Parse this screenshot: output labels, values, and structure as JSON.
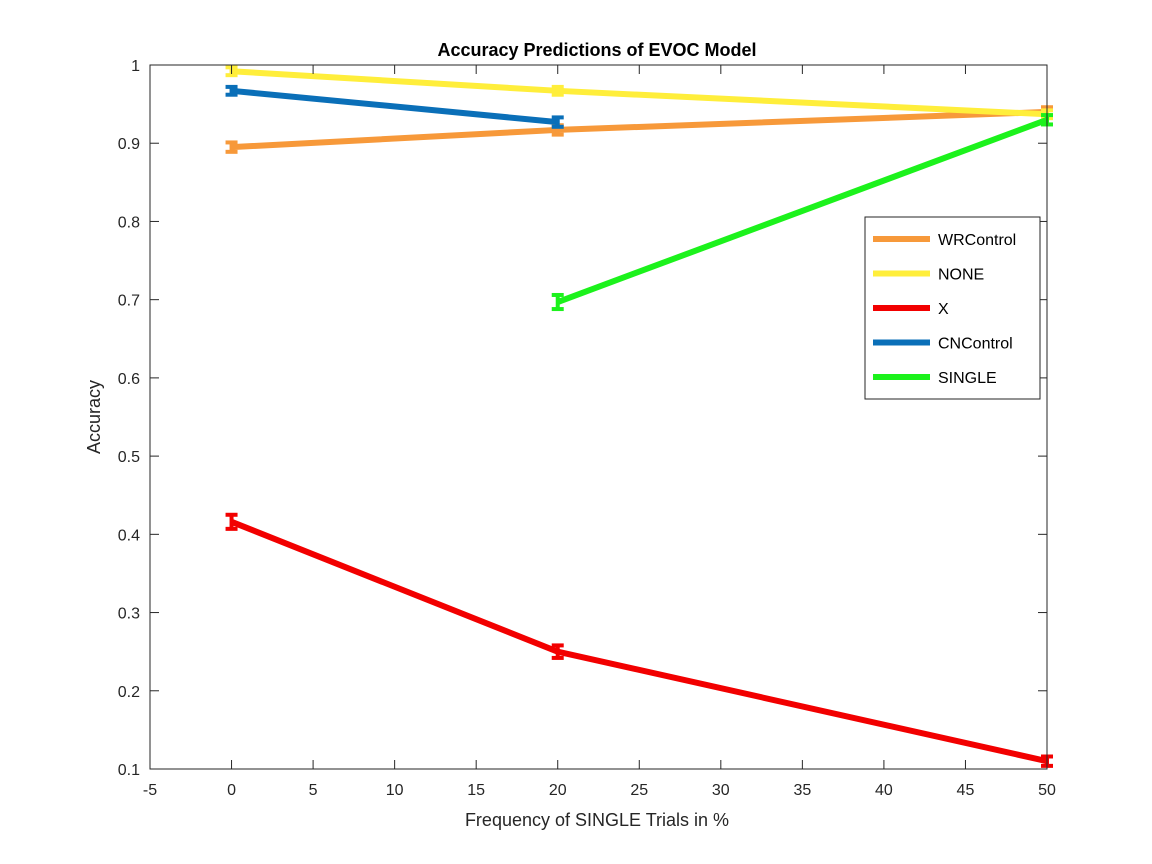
{
  "chart_data": {
    "type": "line",
    "title": "Accuracy Predictions of EVOC Model",
    "xlabel": "Frequency of SINGLE Trials in %",
    "ylabel": "Accuracy",
    "xlim": [
      -5,
      50
    ],
    "ylim": [
      0.1,
      1
    ],
    "xticks": [
      -5,
      0,
      5,
      10,
      15,
      20,
      25,
      30,
      35,
      40,
      45,
      50
    ],
    "yticks": [
      0.1,
      0.2,
      0.3,
      0.4,
      0.5,
      0.6,
      0.7,
      0.8,
      0.9,
      1
    ],
    "ytick_labels": [
      "0.1",
      "0.2",
      "0.3",
      "0.4",
      "0.5",
      "0.6",
      "0.7",
      "0.8",
      "0.9",
      "1"
    ],
    "grid": false,
    "legend_position": "right",
    "series": [
      {
        "name": "WRControl",
        "color": "#f7993a",
        "x": [
          0,
          20,
          50
        ],
        "y": [
          0.895,
          0.917,
          0.94
        ],
        "err": [
          0.006,
          0.006,
          0.006
        ]
      },
      {
        "name": "NONE",
        "color": "#ffee3b",
        "x": [
          0,
          20,
          50
        ],
        "y": [
          0.992,
          0.967,
          0.937
        ],
        "err": [
          0.005,
          0.005,
          0.005
        ]
      },
      {
        "name": "X",
        "color": "#f20000",
        "x": [
          0,
          20,
          50
        ],
        "y": [
          0.416,
          0.25,
          0.11
        ],
        "err": [
          0.009,
          0.008,
          0.006
        ]
      },
      {
        "name": "CNControl",
        "color": "#0a6fb8",
        "x": [
          0,
          20
        ],
        "y": [
          0.967,
          0.927
        ],
        "err": [
          0.005,
          0.006
        ]
      },
      {
        "name": "SINGLE",
        "color": "#1cf21c",
        "x": [
          20,
          50
        ],
        "y": [
          0.697,
          0.93
        ],
        "err": [
          0.009,
          0.006
        ]
      }
    ]
  }
}
